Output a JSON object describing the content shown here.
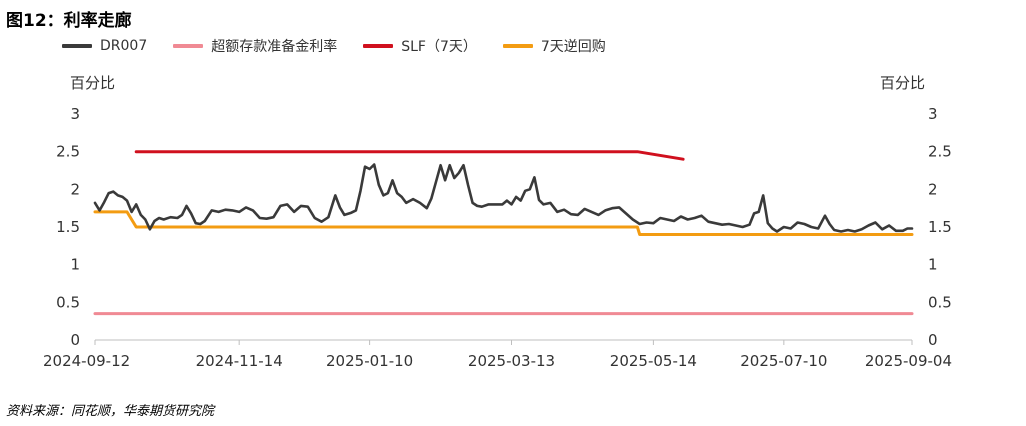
{
  "figure": {
    "title": "图12：利率走廊",
    "source": "资料来源：同花顺，华泰期货研究院"
  },
  "chart_data": {
    "type": "line",
    "y_unit_left": "百分比",
    "y_unit_right": "百分比",
    "ylim": [
      0,
      3
    ],
    "yticks": [
      "0",
      "0.5",
      "1",
      "1.5",
      "2",
      "2.5",
      "3"
    ],
    "xlim": [
      "2024-09-12",
      "2025-09-04"
    ],
    "xticks": [
      "2024-09-12",
      "2024-11-14",
      "2025-01-10",
      "2025-03-13",
      "2025-05-14",
      "2025-07-10",
      "2025-09-04"
    ],
    "grid": false,
    "legend_position": "top-left",
    "series": [
      {
        "name": "DR007",
        "color": "#3a3a3a",
        "points": [
          [
            "2024-09-12",
            1.82
          ],
          [
            "2024-09-14",
            1.72
          ],
          [
            "2024-09-16",
            1.83
          ],
          [
            "2024-09-18",
            1.95
          ],
          [
            "2024-09-20",
            1.97
          ],
          [
            "2024-09-22",
            1.92
          ],
          [
            "2024-09-24",
            1.9
          ],
          [
            "2024-09-26",
            1.85
          ],
          [
            "2024-09-28",
            1.7
          ],
          [
            "2024-09-30",
            1.8
          ],
          [
            "2024-10-02",
            1.66
          ],
          [
            "2024-10-04",
            1.6
          ],
          [
            "2024-10-06",
            1.47
          ],
          [
            "2024-10-08",
            1.58
          ],
          [
            "2024-10-10",
            1.62
          ],
          [
            "2024-10-12",
            1.6
          ],
          [
            "2024-10-15",
            1.63
          ],
          [
            "2024-10-18",
            1.62
          ],
          [
            "2024-10-20",
            1.66
          ],
          [
            "2024-10-22",
            1.78
          ],
          [
            "2024-10-24",
            1.68
          ],
          [
            "2024-10-26",
            1.55
          ],
          [
            "2024-10-28",
            1.54
          ],
          [
            "2024-10-30",
            1.58
          ],
          [
            "2024-11-02",
            1.72
          ],
          [
            "2024-11-05",
            1.7
          ],
          [
            "2024-11-08",
            1.73
          ],
          [
            "2024-11-11",
            1.72
          ],
          [
            "2024-11-14",
            1.7
          ],
          [
            "2024-11-17",
            1.76
          ],
          [
            "2024-11-20",
            1.72
          ],
          [
            "2024-11-23",
            1.62
          ],
          [
            "2024-11-26",
            1.61
          ],
          [
            "2024-11-29",
            1.63
          ],
          [
            "2024-12-02",
            1.78
          ],
          [
            "2024-12-05",
            1.8
          ],
          [
            "2024-12-08",
            1.7
          ],
          [
            "2024-12-11",
            1.78
          ],
          [
            "2024-12-14",
            1.77
          ],
          [
            "2024-12-17",
            1.62
          ],
          [
            "2024-12-20",
            1.57
          ],
          [
            "2024-12-23",
            1.63
          ],
          [
            "2024-12-26",
            1.92
          ],
          [
            "2024-12-28",
            1.76
          ],
          [
            "2024-12-30",
            1.66
          ],
          [
            "2025-01-02",
            1.69
          ],
          [
            "2025-01-04",
            1.72
          ],
          [
            "2025-01-06",
            1.98
          ],
          [
            "2025-01-08",
            2.3
          ],
          [
            "2025-01-10",
            2.27
          ],
          [
            "2025-01-12",
            2.33
          ],
          [
            "2025-01-14",
            2.06
          ],
          [
            "2025-01-16",
            1.92
          ],
          [
            "2025-01-18",
            1.95
          ],
          [
            "2025-01-20",
            2.12
          ],
          [
            "2025-01-22",
            1.95
          ],
          [
            "2025-01-24",
            1.9
          ],
          [
            "2025-01-26",
            1.82
          ],
          [
            "2025-01-29",
            1.87
          ],
          [
            "2025-02-01",
            1.82
          ],
          [
            "2025-02-04",
            1.75
          ],
          [
            "2025-02-06",
            1.88
          ],
          [
            "2025-02-08",
            2.1
          ],
          [
            "2025-02-10",
            2.32
          ],
          [
            "2025-02-12",
            2.12
          ],
          [
            "2025-02-14",
            2.32
          ],
          [
            "2025-02-16",
            2.15
          ],
          [
            "2025-02-18",
            2.22
          ],
          [
            "2025-02-20",
            2.32
          ],
          [
            "2025-02-22",
            2.06
          ],
          [
            "2025-02-24",
            1.82
          ],
          [
            "2025-02-26",
            1.78
          ],
          [
            "2025-02-28",
            1.77
          ],
          [
            "2025-03-03",
            1.8
          ],
          [
            "2025-03-06",
            1.8
          ],
          [
            "2025-03-09",
            1.8
          ],
          [
            "2025-03-11",
            1.85
          ],
          [
            "2025-03-13",
            1.8
          ],
          [
            "2025-03-15",
            1.9
          ],
          [
            "2025-03-17",
            1.85
          ],
          [
            "2025-03-19",
            1.98
          ],
          [
            "2025-03-21",
            2.0
          ],
          [
            "2025-03-23",
            2.16
          ],
          [
            "2025-03-25",
            1.86
          ],
          [
            "2025-03-27",
            1.8
          ],
          [
            "2025-03-30",
            1.82
          ],
          [
            "2025-04-02",
            1.7
          ],
          [
            "2025-04-05",
            1.73
          ],
          [
            "2025-04-08",
            1.67
          ],
          [
            "2025-04-11",
            1.66
          ],
          [
            "2025-04-14",
            1.74
          ],
          [
            "2025-04-17",
            1.7
          ],
          [
            "2025-04-20",
            1.66
          ],
          [
            "2025-04-23",
            1.72
          ],
          [
            "2025-04-26",
            1.75
          ],
          [
            "2025-04-29",
            1.76
          ],
          [
            "2025-05-02",
            1.68
          ],
          [
            "2025-05-05",
            1.6
          ],
          [
            "2025-05-08",
            1.54
          ],
          [
            "2025-05-11",
            1.56
          ],
          [
            "2025-05-14",
            1.55
          ],
          [
            "2025-05-17",
            1.62
          ],
          [
            "2025-05-20",
            1.6
          ],
          [
            "2025-05-23",
            1.58
          ],
          [
            "2025-05-26",
            1.64
          ],
          [
            "2025-05-29",
            1.6
          ],
          [
            "2025-06-01",
            1.62
          ],
          [
            "2025-06-04",
            1.65
          ],
          [
            "2025-06-07",
            1.57
          ],
          [
            "2025-06-10",
            1.55
          ],
          [
            "2025-06-13",
            1.53
          ],
          [
            "2025-06-16",
            1.54
          ],
          [
            "2025-06-19",
            1.52
          ],
          [
            "2025-06-22",
            1.5
          ],
          [
            "2025-06-25",
            1.53
          ],
          [
            "2025-06-27",
            1.68
          ],
          [
            "2025-06-29",
            1.7
          ],
          [
            "2025-07-01",
            1.92
          ],
          [
            "2025-07-03",
            1.55
          ],
          [
            "2025-07-05",
            1.48
          ],
          [
            "2025-07-07",
            1.44
          ],
          [
            "2025-07-10",
            1.5
          ],
          [
            "2025-07-13",
            1.48
          ],
          [
            "2025-07-16",
            1.56
          ],
          [
            "2025-07-19",
            1.54
          ],
          [
            "2025-07-22",
            1.5
          ],
          [
            "2025-07-25",
            1.48
          ],
          [
            "2025-07-28",
            1.65
          ],
          [
            "2025-07-30",
            1.54
          ],
          [
            "2025-08-01",
            1.46
          ],
          [
            "2025-08-04",
            1.44
          ],
          [
            "2025-08-07",
            1.46
          ],
          [
            "2025-08-10",
            1.44
          ],
          [
            "2025-08-13",
            1.47
          ],
          [
            "2025-08-16",
            1.52
          ],
          [
            "2025-08-19",
            1.56
          ],
          [
            "2025-08-22",
            1.47
          ],
          [
            "2025-08-25",
            1.52
          ],
          [
            "2025-08-28",
            1.45
          ],
          [
            "2025-08-31",
            1.45
          ],
          [
            "2025-09-02",
            1.48
          ],
          [
            "2025-09-04",
            1.48
          ]
        ]
      },
      {
        "name": "超额存款准备金利率",
        "color": "#f08a94",
        "points": [
          [
            "2024-09-12",
            0.35
          ],
          [
            "2025-09-04",
            0.35
          ]
        ]
      },
      {
        "name": "SLF（7天）",
        "color": "#d0101e",
        "points": [
          [
            "2024-09-30",
            2.5
          ],
          [
            "2025-05-07",
            2.5
          ],
          [
            "2025-05-27",
            2.4
          ]
        ]
      },
      {
        "name": "7天逆回购",
        "color": "#f39c12",
        "points": [
          [
            "2024-09-12",
            1.7
          ],
          [
            "2024-09-26",
            1.7
          ],
          [
            "2024-09-30",
            1.5
          ],
          [
            "2025-05-07",
            1.5
          ],
          [
            "2025-05-08",
            1.4
          ],
          [
            "2025-09-04",
            1.4
          ]
        ]
      }
    ]
  }
}
